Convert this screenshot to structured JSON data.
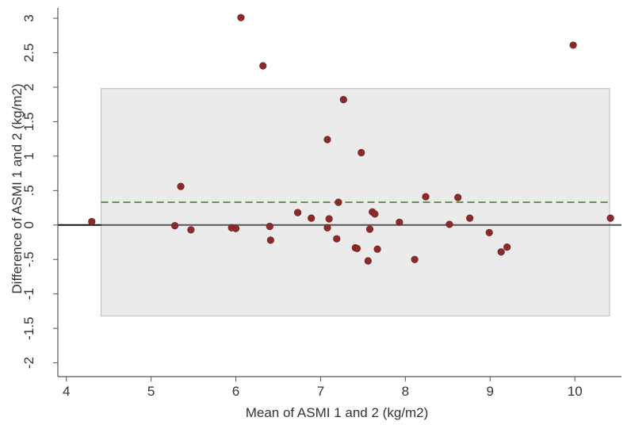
{
  "chart_data": {
    "type": "scatter",
    "title": "",
    "xlabel": "Mean of ASMI 1 and 2 (kg/m2)",
    "ylabel": "Difference of ASMI 1 and 2 (kg/m2)",
    "xlim": [
      3.9,
      10.55
    ],
    "ylim": [
      -2.2,
      3.15
    ],
    "xticks": [
      4,
      5,
      6,
      7,
      8,
      9,
      10
    ],
    "xtick_labels": [
      "4",
      "5",
      "6",
      "7",
      "8",
      "9",
      "10"
    ],
    "yticks": [
      3,
      2.5,
      2,
      1.5,
      1,
      0.5,
      0,
      -0.5,
      -1,
      -1.5,
      -2
    ],
    "ytick_labels": [
      "3",
      "2.5",
      "2",
      "1.5",
      "1",
      ".5",
      "0",
      "-.5",
      "-1",
      "-1.5",
      "-2"
    ],
    "grid": false,
    "legend": "none",
    "points": [
      {
        "x": 4.3,
        "y": 0.05
      },
      {
        "x": 5.28,
        "y": -0.01
      },
      {
        "x": 5.35,
        "y": 0.56
      },
      {
        "x": 5.47,
        "y": -0.07
      },
      {
        "x": 5.95,
        "y": -0.04
      },
      {
        "x": 6.0,
        "y": -0.05
      },
      {
        "x": 6.06,
        "y": 3.01
      },
      {
        "x": 6.32,
        "y": 2.31
      },
      {
        "x": 6.4,
        "y": -0.02
      },
      {
        "x": 6.41,
        "y": -0.22
      },
      {
        "x": 6.73,
        "y": 0.18
      },
      {
        "x": 6.89,
        "y": 0.1
      },
      {
        "x": 7.08,
        "y": 1.24
      },
      {
        "x": 7.08,
        "y": -0.04
      },
      {
        "x": 7.1,
        "y": 0.09
      },
      {
        "x": 7.19,
        "y": -0.2
      },
      {
        "x": 7.21,
        "y": 0.33
      },
      {
        "x": 7.27,
        "y": 1.82
      },
      {
        "x": 7.41,
        "y": -0.33
      },
      {
        "x": 7.43,
        "y": -0.34
      },
      {
        "x": 7.48,
        "y": 1.05
      },
      {
        "x": 7.56,
        "y": -0.52
      },
      {
        "x": 7.58,
        "y": -0.06
      },
      {
        "x": 7.61,
        "y": 0.19
      },
      {
        "x": 7.64,
        "y": 0.16
      },
      {
        "x": 7.67,
        "y": -0.35
      },
      {
        "x": 7.93,
        "y": 0.04
      },
      {
        "x": 8.11,
        "y": -0.5
      },
      {
        "x": 8.24,
        "y": 0.41
      },
      {
        "x": 8.52,
        "y": 0.01
      },
      {
        "x": 8.62,
        "y": 0.4
      },
      {
        "x": 8.76,
        "y": 0.1
      },
      {
        "x": 8.99,
        "y": -0.11
      },
      {
        "x": 9.13,
        "y": -0.39
      },
      {
        "x": 9.2,
        "y": -0.32
      },
      {
        "x": 9.98,
        "y": 2.61
      },
      {
        "x": 10.42,
        "y": 0.1
      }
    ],
    "mean_difference": 0.33,
    "agreement_region": {
      "x": [
        4.41,
        10.41
      ],
      "y": [
        -1.32,
        1.98
      ]
    },
    "reference_line": 0,
    "colors": {
      "points": "#8b2a2a",
      "mean_line": "#4a7a3a",
      "zero_line": "#555555",
      "region_fill": "#ebebeb",
      "region_stroke": "#bdbdbd",
      "axis": "#555555",
      "text": "#333333"
    }
  }
}
